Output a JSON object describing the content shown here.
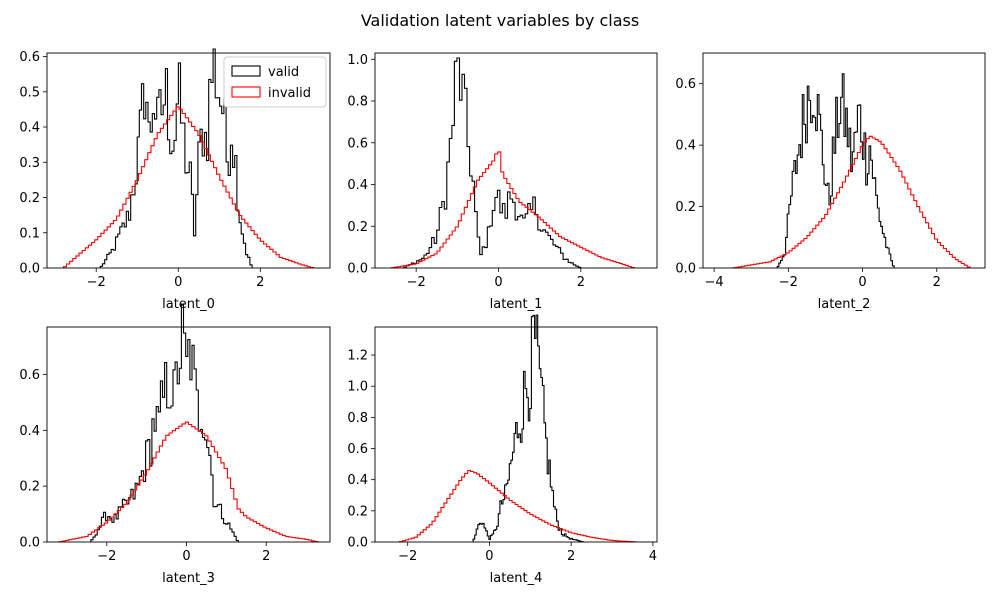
{
  "figure": {
    "title": "Validation latent variables by class",
    "legend": {
      "location": "upper-right of first panel"
    }
  },
  "colors": {
    "valid": "#000000",
    "invalid": "#ff0000"
  },
  "chart_data": [
    {
      "type": "histogram-step",
      "xlabel": "latent_0",
      "xlim": [
        -3.2,
        3.7
      ],
      "ylim": [
        0,
        0.61
      ],
      "xticks": [
        -2,
        0,
        2
      ],
      "yticks": [
        0.0,
        0.1,
        0.2,
        0.3,
        0.4,
        0.5,
        0.6
      ],
      "legend_entries": [
        "valid",
        "invalid"
      ],
      "series": [
        {
          "name": "valid",
          "color": "#000000",
          "kind": "rugged",
          "x": [
            -1.9,
            -1.6,
            -1.4,
            -1.2,
            -1.0,
            -0.9,
            -0.8,
            -0.7,
            -0.6,
            -0.5,
            -0.4,
            -0.3,
            -0.2,
            -0.1,
            0.0,
            0.1,
            0.2,
            0.3,
            0.4,
            0.5,
            0.6,
            0.7,
            0.8,
            0.9,
            1.0,
            1.1,
            1.2,
            1.3,
            1.4,
            1.5,
            1.65,
            1.8
          ],
          "y": [
            0.0,
            0.05,
            0.1,
            0.15,
            0.3,
            0.4,
            0.55,
            0.35,
            0.5,
            0.4,
            0.45,
            0.5,
            0.4,
            0.35,
            0.5,
            0.4,
            0.3,
            0.25,
            0.1,
            0.3,
            0.4,
            0.35,
            0.55,
            0.57,
            0.5,
            0.45,
            0.3,
            0.4,
            0.3,
            0.15,
            0.05,
            0.0
          ]
        },
        {
          "name": "invalid",
          "color": "#ff0000",
          "kind": "gaussian",
          "x": [
            -2.8,
            -2.0,
            -1.5,
            -1.0,
            -0.5,
            0.0,
            0.5,
            1.0,
            1.5,
            2.0,
            2.5,
            3.0,
            3.3
          ],
          "y": [
            0.0,
            0.08,
            0.14,
            0.25,
            0.38,
            0.46,
            0.38,
            0.26,
            0.15,
            0.08,
            0.03,
            0.01,
            0.0
          ]
        }
      ]
    },
    {
      "type": "histogram-step",
      "xlabel": "latent_1",
      "xlim": [
        -3.0,
        3.85
      ],
      "ylim": [
        0,
        1.03
      ],
      "xticks": [
        -2,
        0,
        2
      ],
      "yticks": [
        0.0,
        0.2,
        0.4,
        0.6,
        0.8,
        1.0
      ],
      "series": [
        {
          "name": "valid",
          "color": "#000000",
          "kind": "rugged",
          "x": [
            -2.3,
            -2.1,
            -1.8,
            -1.5,
            -1.3,
            -1.15,
            -1.05,
            -0.95,
            -0.85,
            -0.75,
            -0.65,
            -0.55,
            -0.45,
            -0.35,
            -0.25,
            -0.15,
            -0.05,
            0.05,
            0.15,
            0.3,
            0.45,
            0.6,
            0.75,
            0.9,
            1.05,
            1.2,
            1.4,
            1.6,
            1.8,
            2.0
          ],
          "y": [
            0.0,
            0.02,
            0.05,
            0.15,
            0.35,
            0.6,
            0.85,
            0.95,
            0.8,
            0.6,
            0.5,
            0.25,
            0.05,
            0.1,
            0.15,
            0.3,
            0.35,
            0.3,
            0.25,
            0.35,
            0.3,
            0.2,
            0.25,
            0.3,
            0.2,
            0.15,
            0.1,
            0.05,
            0.02,
            0.0
          ]
        },
        {
          "name": "invalid",
          "color": "#ff0000",
          "kind": "gaussian",
          "x": [
            -2.6,
            -2.0,
            -1.5,
            -1.0,
            -0.5,
            -0.1,
            0.0,
            0.1,
            0.5,
            1.0,
            1.5,
            2.0,
            2.5,
            3.0,
            3.3
          ],
          "y": [
            0.0,
            0.02,
            0.07,
            0.2,
            0.42,
            0.52,
            0.58,
            0.45,
            0.32,
            0.24,
            0.15,
            0.1,
            0.05,
            0.02,
            0.0
          ]
        }
      ]
    },
    {
      "type": "histogram-step",
      "xlabel": "latent_2",
      "xlim": [
        -4.3,
        3.3
      ],
      "ylim": [
        0,
        0.7
      ],
      "xticks": [
        -4,
        -2,
        0,
        2
      ],
      "yticks": [
        0.0,
        0.2,
        0.4,
        0.6
      ],
      "series": [
        {
          "name": "valid",
          "color": "#000000",
          "kind": "rugged",
          "x": [
            -2.3,
            -2.1,
            -1.9,
            -1.7,
            -1.5,
            -1.3,
            -1.2,
            -1.1,
            -1.0,
            -0.9,
            -0.8,
            -0.7,
            -0.6,
            -0.5,
            -0.4,
            -0.3,
            -0.2,
            -0.1,
            0.0,
            0.1,
            0.2,
            0.3,
            0.4,
            0.55,
            0.7,
            0.85
          ],
          "y": [
            0.0,
            0.05,
            0.25,
            0.4,
            0.55,
            0.62,
            0.5,
            0.4,
            0.3,
            0.2,
            0.35,
            0.45,
            0.55,
            0.5,
            0.45,
            0.35,
            0.4,
            0.5,
            0.45,
            0.35,
            0.4,
            0.3,
            0.2,
            0.12,
            0.05,
            0.0
          ]
        },
        {
          "name": "invalid",
          "color": "#ff0000",
          "kind": "gaussian",
          "x": [
            -3.5,
            -2.5,
            -2.0,
            -1.5,
            -1.0,
            -0.5,
            0.0,
            0.2,
            0.5,
            1.0,
            1.5,
            2.0,
            2.5,
            2.9
          ],
          "y": [
            0.0,
            0.02,
            0.05,
            0.1,
            0.17,
            0.28,
            0.4,
            0.43,
            0.41,
            0.32,
            0.2,
            0.09,
            0.03,
            0.0
          ]
        }
      ]
    },
    {
      "type": "histogram-step",
      "xlabel": "latent_3",
      "xlim": [
        -3.5,
        3.6
      ],
      "ylim": [
        0,
        0.77
      ],
      "xticks": [
        -2,
        0,
        2
      ],
      "yticks": [
        0.0,
        0.2,
        0.4,
        0.6
      ],
      "series": [
        {
          "name": "valid",
          "color": "#000000",
          "kind": "rugged",
          "x": [
            -2.4,
            -2.2,
            -2.0,
            -1.8,
            -1.6,
            -1.4,
            -1.2,
            -1.0,
            -0.9,
            -0.8,
            -0.7,
            -0.6,
            -0.5,
            -0.4,
            -0.3,
            -0.2,
            -0.1,
            0.0,
            0.1,
            0.2,
            0.3,
            0.4,
            0.5,
            0.6,
            0.7,
            0.9,
            1.1,
            1.3
          ],
          "y": [
            0.0,
            0.05,
            0.1,
            0.08,
            0.12,
            0.15,
            0.2,
            0.3,
            0.35,
            0.45,
            0.4,
            0.5,
            0.55,
            0.6,
            0.5,
            0.65,
            0.72,
            0.6,
            0.7,
            0.55,
            0.45,
            0.5,
            0.4,
            0.3,
            0.15,
            0.1,
            0.05,
            0.0
          ]
        },
        {
          "name": "invalid",
          "color": "#ff0000",
          "kind": "gaussian",
          "x": [
            -3.2,
            -2.5,
            -2.0,
            -1.5,
            -1.0,
            -0.5,
            0.0,
            0.5,
            1.0,
            1.3,
            1.5,
            2.0,
            2.5,
            3.0,
            3.3
          ],
          "y": [
            0.0,
            0.02,
            0.07,
            0.14,
            0.25,
            0.38,
            0.43,
            0.38,
            0.26,
            0.12,
            0.09,
            0.05,
            0.02,
            0.01,
            0.0
          ]
        }
      ]
    },
    {
      "type": "histogram-step",
      "xlabel": "latent_4",
      "xlim": [
        -2.8,
        4.1
      ],
      "ylim": [
        0,
        1.38
      ],
      "xticks": [
        -2,
        0,
        2,
        4
      ],
      "yticks": [
        0.0,
        0.2,
        0.4,
        0.6,
        0.8,
        1.0,
        1.2
      ],
      "series": [
        {
          "name": "valid",
          "color": "#000000",
          "kind": "rugged",
          "x": [
            -0.4,
            -0.3,
            -0.2,
            -0.1,
            0.0,
            0.1,
            0.2,
            0.3,
            0.4,
            0.5,
            0.6,
            0.7,
            0.8,
            0.9,
            1.0,
            1.1,
            1.2,
            1.3,
            1.4,
            1.5,
            1.6,
            1.7,
            1.8,
            2.0,
            2.3
          ],
          "y": [
            0.0,
            0.08,
            0.15,
            0.08,
            0.02,
            0.05,
            0.12,
            0.25,
            0.3,
            0.45,
            0.6,
            0.75,
            0.85,
            1.0,
            1.05,
            1.3,
            1.1,
            0.85,
            0.6,
            0.4,
            0.2,
            0.1,
            0.05,
            0.02,
            0.0
          ]
        },
        {
          "name": "invalid",
          "color": "#ff0000",
          "kind": "gaussian",
          "x": [
            -2.2,
            -1.8,
            -1.4,
            -1.0,
            -0.7,
            -0.5,
            -0.3,
            0.0,
            0.5,
            1.0,
            1.5,
            2.0,
            2.5,
            3.0,
            3.6
          ],
          "y": [
            0.0,
            0.03,
            0.12,
            0.28,
            0.4,
            0.46,
            0.44,
            0.38,
            0.27,
            0.18,
            0.11,
            0.06,
            0.03,
            0.01,
            0.0
          ]
        }
      ]
    }
  ]
}
